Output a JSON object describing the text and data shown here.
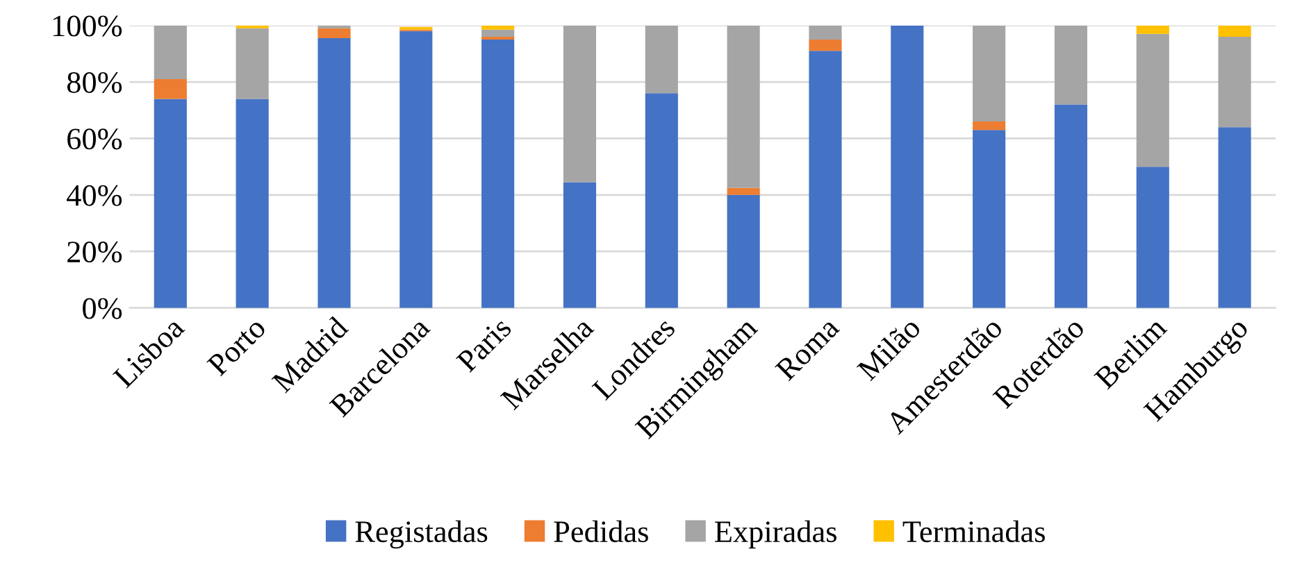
{
  "chart_data": {
    "type": "bar",
    "stacked": true,
    "categories": [
      "Lisboa",
      "Porto",
      "Madrid",
      "Barcelona",
      "Paris",
      "Marselha",
      "Londres",
      "Birmingham",
      "Roma",
      "Milão",
      "Amesterdão",
      "Roterdão",
      "Berlim",
      "Hamburgo"
    ],
    "series": [
      {
        "name": "Registadas",
        "color": "#4472c4",
        "values": [
          74,
          74,
          95.5,
          98,
          95,
          44.5,
          76,
          40,
          91,
          100,
          63,
          72,
          50,
          64
        ]
      },
      {
        "name": "Pedidas",
        "color": "#ed7d31",
        "values": [
          7,
          0,
          3.5,
          0.5,
          1,
          0,
          0,
          2.5,
          4,
          0,
          3,
          0,
          0,
          0
        ]
      },
      {
        "name": "Expiradas",
        "color": "#a5a5a5",
        "values": [
          19,
          25,
          1,
          null,
          2.5,
          55.5,
          24,
          57.5,
          5,
          0,
          34,
          28,
          47,
          32
        ]
      },
      {
        "name": "Terminadas",
        "color": "#ffc000",
        "values": [
          0,
          1,
          0,
          1,
          1.5,
          0,
          0,
          0,
          0,
          0,
          0,
          0,
          3,
          4
        ]
      }
    ],
    "ylim": [
      0,
      100
    ],
    "yticks": [
      {
        "value": 0,
        "label": "0%"
      },
      {
        "value": 20,
        "label": "20%"
      },
      {
        "value": 40,
        "label": "40%"
      },
      {
        "value": 60,
        "label": "60%"
      },
      {
        "value": 80,
        "label": "80%"
      },
      {
        "value": 100,
        "label": "100%"
      }
    ],
    "grid": "y",
    "legend": "bottom"
  }
}
